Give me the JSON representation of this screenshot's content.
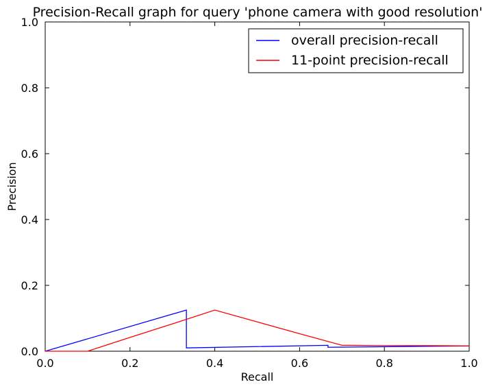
{
  "chart_data": {
    "type": "line",
    "title": "Precision-Recall graph for query 'phone camera with good resolution'",
    "xlabel": "Recall",
    "ylabel": "Precision",
    "xlim": [
      0.0,
      1.0
    ],
    "ylim": [
      0.0,
      1.0
    ],
    "xticks": [
      "0.0",
      "0.2",
      "0.4",
      "0.6",
      "0.8",
      "1.0"
    ],
    "yticks": [
      "0.0",
      "0.2",
      "0.4",
      "0.6",
      "0.8",
      "1.0"
    ],
    "grid": false,
    "legend_position": "top-right",
    "series": [
      {
        "name": "overall precision-recall",
        "color": "#0000ff",
        "x": [
          0.0,
          0.333,
          0.333,
          0.667,
          0.667,
          1.0
        ],
        "y": [
          0.0,
          0.125,
          0.01,
          0.018,
          0.012,
          0.016
        ]
      },
      {
        "name": "11-point precision-recall",
        "color": "#ff0000",
        "x": [
          0.0,
          0.1,
          0.2,
          0.3,
          0.4,
          0.5,
          0.6,
          0.7,
          0.8,
          0.9,
          1.0
        ],
        "y": [
          0.0,
          0.0,
          0.042,
          0.083,
          0.125,
          0.089,
          0.053,
          0.018,
          0.017,
          0.017,
          0.016
        ]
      }
    ]
  }
}
